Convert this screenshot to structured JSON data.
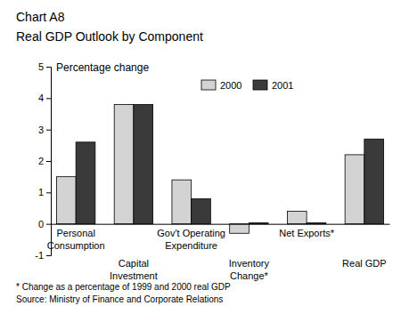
{
  "chart_data": {
    "type": "bar",
    "title": "Chart A8",
    "subtitle": "Real GDP Outlook by Component",
    "y_label": "Percentage change",
    "categories": [
      "Personal\nConsumption",
      "Capital\nInvestment",
      "Gov't Operating\nExpenditure",
      "Inventory\nChange*",
      "Net Exports*",
      "Real GDP"
    ],
    "series": [
      {
        "name": "2000",
        "color": "#d3d3d3",
        "values": [
          1.5,
          3.8,
          1.4,
          -0.3,
          0.4,
          2.2
        ]
      },
      {
        "name": "2001",
        "color": "#3a3a3a",
        "values": [
          2.6,
          3.8,
          0.8,
          0.03,
          0.03,
          2.7
        ]
      }
    ],
    "ylim": [
      -1,
      5
    ],
    "yticks": [
      -1,
      0,
      1,
      2,
      3,
      4,
      5
    ],
    "grid": false,
    "legend": "top",
    "footnote": "* Change as a percentage of 1999 and 2000 real GDP",
    "source": "Source: Ministry of Finance and Corporate Relations"
  }
}
